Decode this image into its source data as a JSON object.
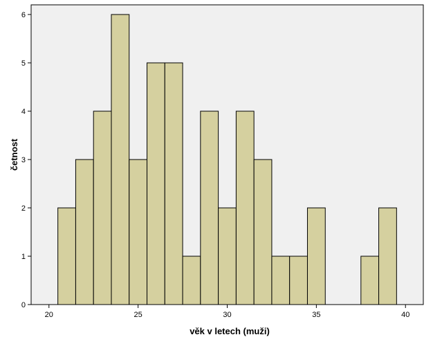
{
  "chart_data": {
    "type": "bar",
    "subtype": "histogram",
    "title": "",
    "xlabel": "věk v letech (muži)",
    "ylabel": "četnost",
    "bin_width": 1,
    "bins": [
      {
        "start": 20.5,
        "end": 21.5,
        "count": 2
      },
      {
        "start": 21.5,
        "end": 22.5,
        "count": 3
      },
      {
        "start": 22.5,
        "end": 23.5,
        "count": 4
      },
      {
        "start": 23.5,
        "end": 24.5,
        "count": 6
      },
      {
        "start": 24.5,
        "end": 25.5,
        "count": 3
      },
      {
        "start": 25.5,
        "end": 26.5,
        "count": 5
      },
      {
        "start": 26.5,
        "end": 27.5,
        "count": 5
      },
      {
        "start": 27.5,
        "end": 28.5,
        "count": 1
      },
      {
        "start": 28.5,
        "end": 29.5,
        "count": 4
      },
      {
        "start": 29.5,
        "end": 30.5,
        "count": 2
      },
      {
        "start": 30.5,
        "end": 31.5,
        "count": 4
      },
      {
        "start": 31.5,
        "end": 32.5,
        "count": 3
      },
      {
        "start": 32.5,
        "end": 33.5,
        "count": 1
      },
      {
        "start": 33.5,
        "end": 34.5,
        "count": 1
      },
      {
        "start": 34.5,
        "end": 35.5,
        "count": 2
      },
      {
        "start": 37.5,
        "end": 38.5,
        "count": 1
      },
      {
        "start": 38.5,
        "end": 39.5,
        "count": 2
      }
    ],
    "xlim": [
      19,
      41
    ],
    "ylim": [
      0,
      6.2
    ],
    "x_ticks": [
      "20",
      "25",
      "30",
      "35",
      "40"
    ],
    "y_ticks": [
      "0",
      "1",
      "2",
      "3",
      "4",
      "5",
      "6"
    ],
    "grid": false,
    "legend": "none",
    "colors": {
      "bar_fill": "#d5d09f",
      "bar_stroke": "#000000",
      "plot_background": "#f0f0f0",
      "frame": "#000000"
    }
  }
}
